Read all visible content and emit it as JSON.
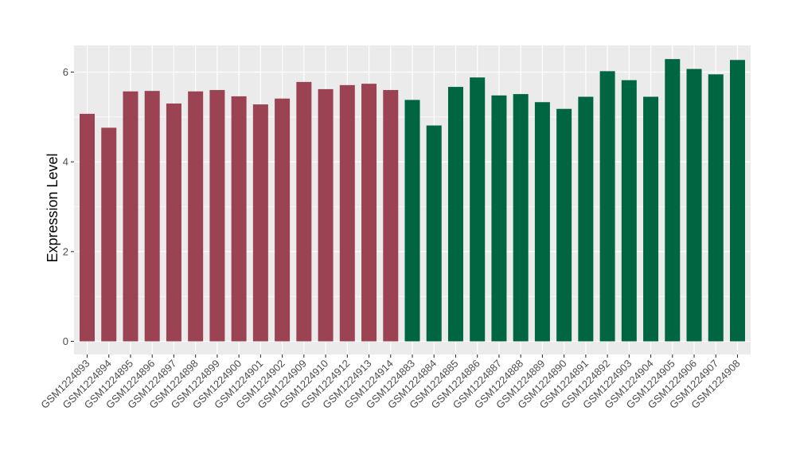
{
  "chart_data": {
    "type": "bar",
    "title": "",
    "xlabel": "",
    "ylabel": "Expression Level",
    "ylim": [
      0,
      6.6
    ],
    "yticks": [
      "0",
      "2",
      "4",
      "6"
    ],
    "grid": true,
    "legend": "none",
    "categories": [
      "GSM1224893",
      "GSM1224894",
      "GSM1224895",
      "GSM1224896",
      "GSM1224897",
      "GSM1224898",
      "GSM1224899",
      "GSM1224900",
      "GSM1224901",
      "GSM1224902",
      "GSM1224909",
      "GSM1224910",
      "GSM1224912",
      "GSM1224913",
      "GSM1224914",
      "GSM1224883",
      "GSM1224884",
      "GSM1224885",
      "GSM1224886",
      "GSM1224887",
      "GSM1224888",
      "GSM1224889",
      "GSM1224890",
      "GSM1224891",
      "GSM1224892",
      "GSM1224903",
      "GSM1224904",
      "GSM1224905",
      "GSM1224906",
      "GSM1224907",
      "GSM1224908"
    ],
    "values": [
      5.07,
      4.76,
      5.57,
      5.58,
      5.3,
      5.57,
      5.6,
      5.46,
      5.28,
      5.41,
      5.78,
      5.62,
      5.71,
      5.74,
      5.6,
      5.38,
      4.81,
      5.67,
      5.88,
      5.48,
      5.51,
      5.33,
      5.18,
      5.45,
      6.02,
      5.82,
      5.45,
      6.29,
      6.07,
      5.95,
      6.27
    ],
    "groups": [
      0,
      0,
      0,
      0,
      0,
      0,
      0,
      0,
      0,
      0,
      0,
      0,
      0,
      0,
      0,
      1,
      1,
      1,
      1,
      1,
      1,
      1,
      1,
      1,
      1,
      1,
      1,
      1,
      1,
      1,
      1
    ],
    "colors": [
      "#9b4353",
      "#006641"
    ],
    "panel_color": "#ebebeb"
  }
}
